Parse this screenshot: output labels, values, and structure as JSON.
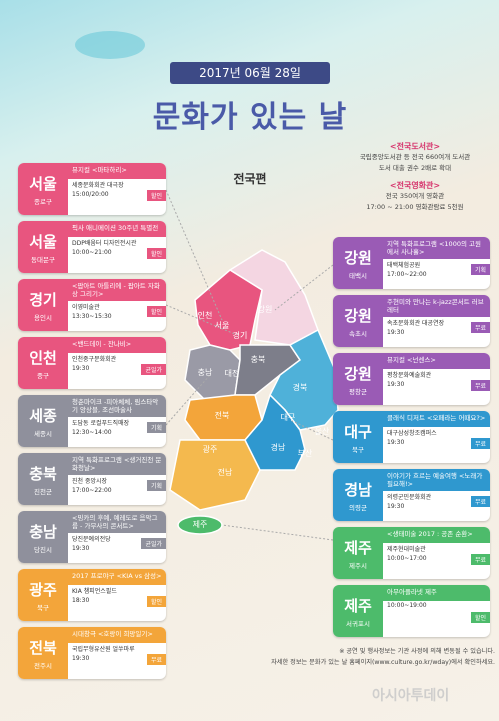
{
  "header": {
    "date": "2017년 06월 28일",
    "title": "문화가 있는 날",
    "subtitle": "전국편"
  },
  "notice": {
    "library_heading": "<전국도서관>",
    "library_lines": [
      "국립중앙도서관 등 전국 660여개 도서관",
      "도서 대출 권수 2배로 확대"
    ],
    "cinema_heading": "<전국영화관>",
    "cinema_lines": [
      "전국 350여개 영화관",
      "17:00 ~ 21:00 영화관람료 5천원"
    ]
  },
  "left_events": [
    {
      "region": "서울",
      "district": "종로구",
      "title": "뮤지컬 <마타하리>",
      "venue": "세종문화회관 대극장",
      "time": "15:00/20:00",
      "tag": "할인"
    },
    {
      "region": "서울",
      "district": "동대문구",
      "title": "픽사 애니메이션 30주년 특별전",
      "venue": "DDP배움터 디자인전시관",
      "time": "10:00~21:00",
      "tag": "할인"
    },
    {
      "region": "경기",
      "district": "용인시",
      "title": "<팝아트 아틀리에 - 팝아트 자화상 그리기>",
      "venue": "이영미술관",
      "time": "13:30~15:30",
      "tag": "할인"
    },
    {
      "region": "인천",
      "district": "중구",
      "title": "<밴드데이 - 잔나비>",
      "venue": "인천중구문화회관",
      "time": "19:30",
      "tag": "균일가"
    },
    {
      "region": "세종",
      "district": "세종시",
      "title": "청춘마이크 -피아체체, 림스타악기 앙상블, 조선마술사",
      "venue": "도담동 로컬푸드직매장",
      "time": "12:30~14:00",
      "tag": "기획"
    },
    {
      "region": "충북",
      "district": "진천군",
      "title": "지역 특화프로그램 <생거진천 문화청날>",
      "venue": "진천 중앙시장",
      "time": "17:00~22:00",
      "tag": "기획"
    },
    {
      "region": "충남",
      "district": "당진시",
      "title": "<밍카의 후예, 예레도로 음악그룹 - 가무사의 콘서트>",
      "venue": "당진문예의전당",
      "time": "19:30",
      "tag": "균일가"
    },
    {
      "region": "광주",
      "district": "북구",
      "title": "2017 프로야구 <KIA vs 삼성>",
      "venue": "KIA 챔피언스필드",
      "time": "18:30",
      "tag": "할인"
    },
    {
      "region": "전북",
      "district": "전주시",
      "title": "시대창극 <호랑이 희망일기>",
      "venue": "국립무형유산원 얼쑤마루",
      "time": "19:30",
      "tag": "무료"
    }
  ],
  "right_events": [
    {
      "region": "강원",
      "district": "태백시",
      "title": "지역 특화프로그램 <1000의 고원에서 사나흘>",
      "venue": "태백체험공원",
      "time": "17:00~22:00",
      "tag": "기획"
    },
    {
      "region": "강원",
      "district": "속초시",
      "title": "주현미와 만나는 k-jazz콘서트 러브레터",
      "venue": "속초문화회관 대공연장",
      "time": "19:30",
      "tag": "무료"
    },
    {
      "region": "강원",
      "district": "평창군",
      "title": "뮤지컬 <넌센스>",
      "venue": "평창문화예술회관",
      "time": "19:30",
      "tag": "무료"
    },
    {
      "region": "대구",
      "district": "북구",
      "title": "클래식 디저트 <오페라는 어때요?>",
      "venue": "대구삼성창조캠퍼스",
      "time": "19:30",
      "tag": "무료"
    },
    {
      "region": "경남",
      "district": "의령군",
      "title": "이야기가 흐르는 예술여행 <노래가 필요해!>",
      "venue": "의령군민문화회관",
      "time": "19:30",
      "tag": "무료"
    },
    {
      "region": "제주",
      "district": "제주시",
      "title": "<생태미술 2017 : 공존 순환>",
      "venue": "제주현대미술관",
      "time": "10:00~17:00",
      "tag": "무료"
    },
    {
      "region": "제주",
      "district": "서귀포시",
      "title": "아무아플라넷 제주",
      "time": "10:00~19:00",
      "tag": "할인"
    }
  ],
  "map_labels": [
    "인천",
    "서울",
    "경기",
    "강원",
    "충남",
    "대전",
    "충북",
    "경북",
    "전북",
    "대구",
    "광주",
    "울산",
    "경남",
    "전남",
    "부산",
    "제주"
  ],
  "footer": {
    "note": "※ 공연 및 행사정보는 기관 사정에 의해 변동될 수 있습니다.",
    "info": "자세한 정보는 문화가 있는 날 홈페이지(www.culture.go.kr/wday)에서 확인하세요."
  },
  "watermark": "아시아투데이"
}
